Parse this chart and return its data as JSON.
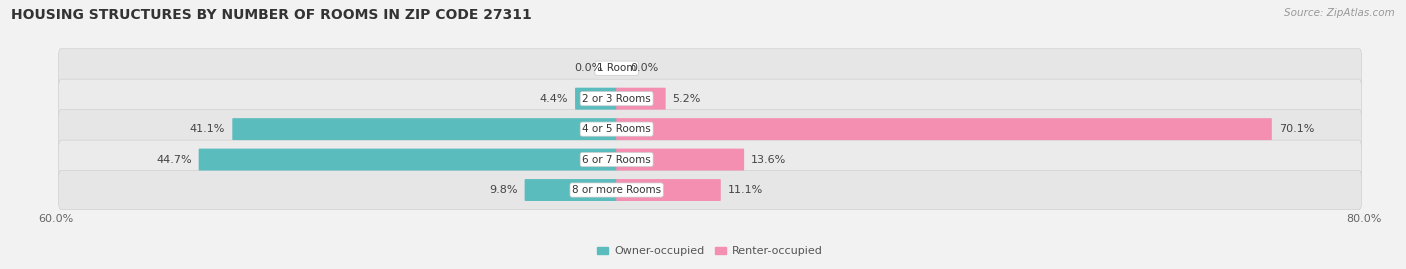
{
  "title": "HOUSING STRUCTURES BY NUMBER OF ROOMS IN ZIP CODE 27311",
  "source": "Source: ZipAtlas.com",
  "categories": [
    "1 Room",
    "2 or 3 Rooms",
    "4 or 5 Rooms",
    "6 or 7 Rooms",
    "8 or more Rooms"
  ],
  "owner_values": [
    0.0,
    4.4,
    41.1,
    44.7,
    9.8
  ],
  "renter_values": [
    0.0,
    5.2,
    70.1,
    13.6,
    11.1
  ],
  "owner_color": "#5bbcbe",
  "renter_color": "#f48fb1",
  "background_color": "#f2f2f2",
  "row_bg_color": "#e8e8e8",
  "row_bg_color2": "#ffffff",
  "xlim_left": -60.0,
  "xlim_right": 80.0,
  "axis_label_left": "60.0%",
  "axis_label_right": "80.0%",
  "title_fontsize": 10,
  "source_fontsize": 7.5,
  "legend_fontsize": 8,
  "bar_height": 0.62,
  "label_fontsize": 8
}
